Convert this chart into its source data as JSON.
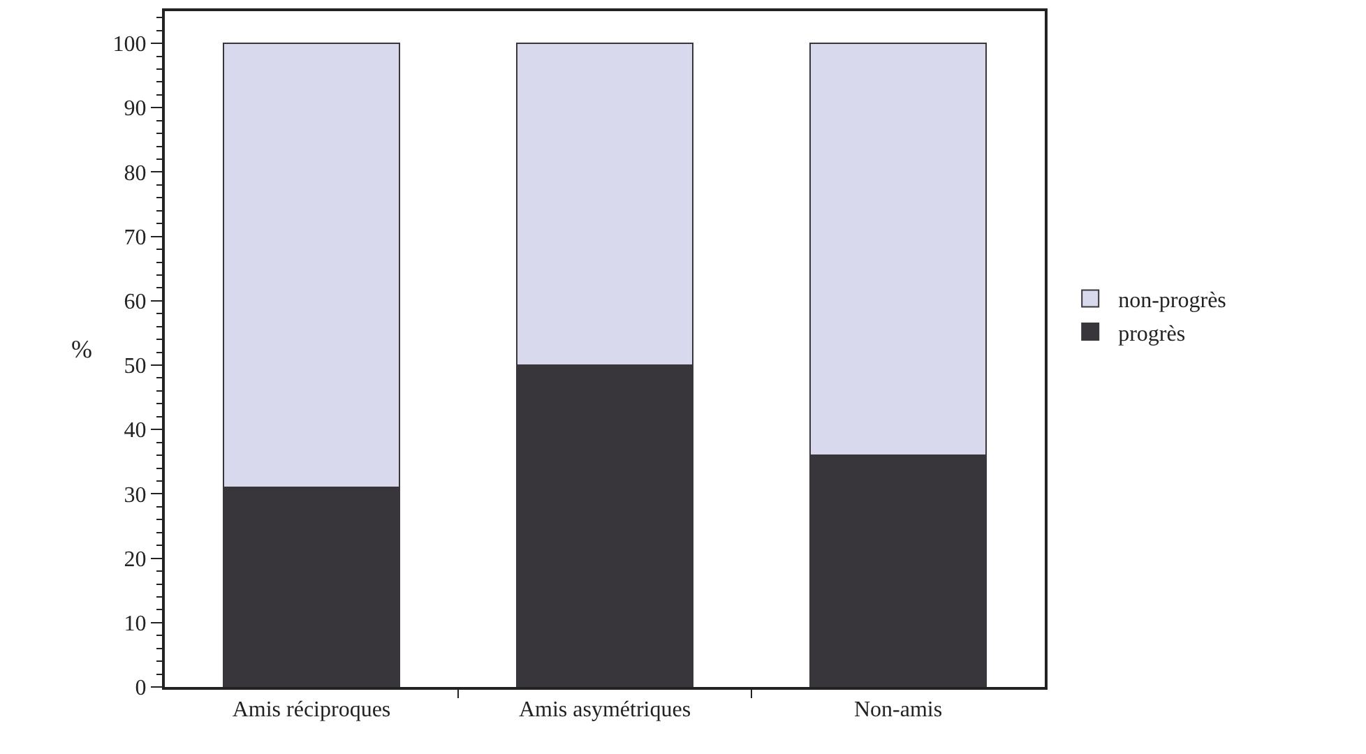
{
  "chart_data": {
    "type": "bar",
    "stacked": true,
    "ylabel": "%",
    "categories": [
      "Amis réciproques",
      "Amis asymétriques",
      "Non-amis"
    ],
    "series": [
      {
        "name": "progrès",
        "color": "#38363b",
        "values": [
          31,
          50,
          36
        ]
      },
      {
        "name": "non-progrès",
        "color": "#d9d9ee",
        "values": [
          69,
          50,
          64
        ]
      }
    ],
    "ylim": [
      0,
      105
    ],
    "yticks": [
      0,
      10,
      20,
      30,
      40,
      50,
      60,
      70,
      80,
      90,
      100
    ],
    "grid": false,
    "legend": "right"
  }
}
